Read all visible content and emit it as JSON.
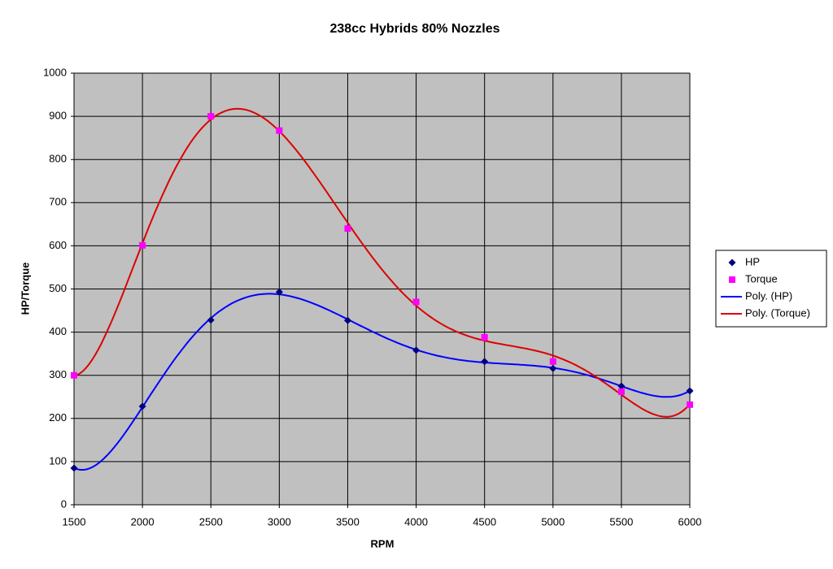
{
  "chart_data": {
    "type": "scatter",
    "title": "238cc Hybrids 80% Nozzles",
    "x_label": "RPM",
    "y_label": "HP/Torque",
    "x": [
      1500,
      2000,
      2500,
      3000,
      3500,
      4000,
      4500,
      5000,
      5500,
      6000
    ],
    "series": [
      {
        "name": "HP",
        "color": "#000080",
        "marker": "diamond",
        "values": [
          85,
          228,
          428,
          493,
          427,
          358,
          332,
          316,
          275,
          264
        ],
        "trendline": {
          "name": "Poly. (HP)",
          "color": "#0000ff"
        }
      },
      {
        "name": "Torque",
        "color": "#ff00ff",
        "marker": "square",
        "values": [
          300,
          601,
          900,
          867,
          640,
          470,
          388,
          332,
          262,
          232
        ],
        "trendline": {
          "name": "Poly. (Torque)",
          "color": "#dd0000"
        }
      }
    ],
    "xlim": [
      1500,
      6000
    ],
    "xticks": [
      1500,
      2000,
      2500,
      3000,
      3500,
      4000,
      4500,
      5000,
      5500,
      6000
    ],
    "ylim": [
      0,
      1000
    ],
    "yticks": [
      0,
      100,
      200,
      300,
      400,
      500,
      600,
      700,
      800,
      900,
      1000
    ],
    "grid": true,
    "legend": "right"
  }
}
